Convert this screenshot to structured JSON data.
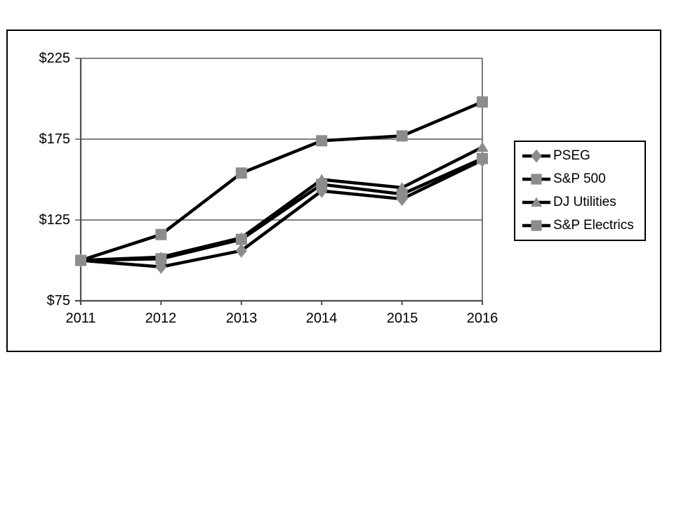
{
  "chart_data": {
    "type": "line",
    "title": "",
    "xlabel": "",
    "ylabel": "",
    "categories": [
      "2011",
      "2012",
      "2013",
      "2014",
      "2015",
      "2016"
    ],
    "y_tick_labels": [
      "$225",
      "$175",
      "$125",
      "$75"
    ],
    "y_tick_values": [
      225,
      175,
      125,
      75
    ],
    "ylim": [
      75,
      225
    ],
    "grid": true,
    "legend_position": "right",
    "line_color": "#000000",
    "marker_color": "#8c8c8c",
    "axis_color": "#4d4d4d",
    "grid_color": "#595959",
    "series": [
      {
        "name": "PSEG",
        "marker": "diamond",
        "values": [
          100,
          96,
          106,
          143,
          138,
          162
        ]
      },
      {
        "name": "S&P 500",
        "marker": "square",
        "values": [
          100,
          116,
          154,
          174,
          177,
          198
        ]
      },
      {
        "name": "DJ Utilities",
        "marker": "triangle",
        "values": [
          100,
          102,
          114,
          150,
          145,
          170
        ]
      },
      {
        "name": "S&P Electrics",
        "marker": "square",
        "values": [
          100,
          101,
          113,
          147,
          141,
          163
        ]
      }
    ]
  }
}
